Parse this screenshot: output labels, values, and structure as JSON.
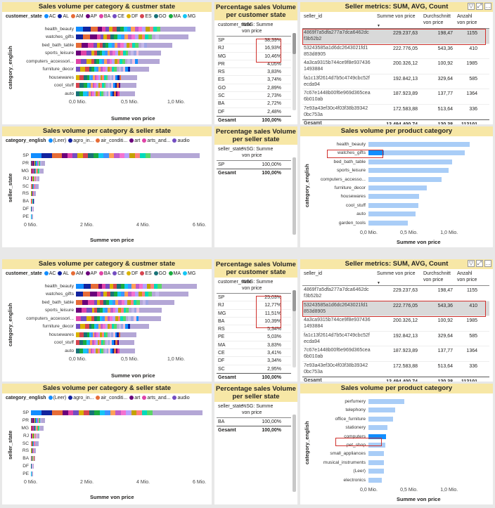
{
  "top": {
    "p1": {
      "title": "Sales volume per category & custmer state",
      "legend_title": "customer_state",
      "legend": [
        {
          "label": "AC",
          "color": "#118dff"
        },
        {
          "label": "AL",
          "color": "#12239e"
        },
        {
          "label": "AM",
          "color": "#e66c37"
        },
        {
          "label": "AP",
          "color": "#6b007b"
        },
        {
          "label": "BA",
          "color": "#e044a7"
        },
        {
          "label": "CE",
          "color": "#744ec2"
        },
        {
          "label": "DF",
          "color": "#d9b300"
        },
        {
          "label": "ES",
          "color": "#d64550"
        },
        {
          "label": "GO",
          "color": "#197278"
        },
        {
          "label": "MA",
          "color": "#1aab40"
        },
        {
          "label": "MG",
          "color": "#15c6f4"
        }
      ],
      "ylabel": "category_english",
      "xlabel": "Summe von price",
      "categories": [
        "health_beauty",
        "watches_gifts",
        "bed_bath_table",
        "sports_leisure",
        "computers_accessori...",
        "furniture_decor",
        "housewares",
        "cool_stuff",
        "auto"
      ],
      "ticks": [
        "0,0 Mio.",
        "0,5 Mio.",
        "1,0 Mio."
      ]
    },
    "p2": {
      "title": "Percentage sales Volume per customer state",
      "h1": "customer_state",
      "h2": "%SG: Summe von price",
      "rows": [
        [
          "SP",
          "38,39%"
        ],
        [
          "RJ",
          "16,93%"
        ],
        [
          "MG",
          "10,46%"
        ],
        [
          "PR",
          "4,05%"
        ],
        [
          "RS",
          "3,83%"
        ],
        [
          "ES",
          "3,74%"
        ],
        [
          "GO",
          "2,89%"
        ],
        [
          "SC",
          "2,73%"
        ],
        [
          "BA",
          "2,72%"
        ],
        [
          "DF",
          "2,48%"
        ]
      ],
      "total_label": "Gesamt",
      "total": "100,00%"
    },
    "p3": {
      "title": "Seller metrics: SUM, AVG, Count",
      "h_id": "seller_id",
      "h_sum": "Summe von price",
      "h_avg": "Durchschnitt von price",
      "h_cnt": "Anzahl von price",
      "rows": [
        [
          "4869f7a5dfa277a7dca6462dc f3b52b2",
          "229.237,63",
          "198,47",
          "1155"
        ],
        [
          "53243585a1d6dc2643021fd1 853d8905",
          "222.776,05",
          "543,36",
          "410"
        ],
        [
          "4a3ca9315b744ce9f8e937436 1493884",
          "200.326,12",
          "100,92",
          "1985"
        ],
        [
          "fa1c13f2614d7b5c4749cbc52f ecda94",
          "192.842,13",
          "329,64",
          "585"
        ],
        [
          "7c67e1448b00f6e969d365cea 6b010ab",
          "187.923,89",
          "137,77",
          "1364"
        ],
        [
          "7e93a43ef30c4f03f38b39342 0bc753a",
          "172.583,88",
          "513,64",
          "336"
        ]
      ],
      "total_label": "Gesamt",
      "total": [
        "13.494.400,74",
        "120,38",
        "112101"
      ]
    },
    "p4": {
      "title": "Sales volume per category & seller state",
      "legend_title": "category_english",
      "legend": [
        {
          "label": "(Leer)",
          "color": "#118dff"
        },
        {
          "label": "agro_in...",
          "color": "#12239e"
        },
        {
          "label": "air_conditi...",
          "color": "#e66c37"
        },
        {
          "label": "art",
          "color": "#6b007b"
        },
        {
          "label": "arts_and...",
          "color": "#e044a7"
        },
        {
          "label": "audio",
          "color": "#744ec2"
        }
      ],
      "ylabel": "seller_state",
      "xlabel": "Summe von price",
      "categories": [
        "SP",
        "PR",
        "MG",
        "RJ",
        "SC",
        "RS",
        "BA",
        "DF",
        "PE"
      ],
      "ticks": [
        "0 Mio.",
        "2 Mio.",
        "4 Mio.",
        "6 Mio."
      ]
    },
    "p5": {
      "title": "Percentage sales Volume per seller state",
      "h1": "seller_state",
      "h2": "%SG: Summe von price",
      "rows": [
        [
          "SP",
          "100,00%"
        ]
      ],
      "total_label": "Gesamt",
      "total": "100,00%"
    },
    "p6": {
      "title": "Sales volume per product category",
      "ylabel": "category_english",
      "xlabel": "Summe von price",
      "categories": [
        "health_beauty",
        "watches_gifts",
        "bed_bath_table",
        "sports_leisure",
        "computers_accesso...",
        "furniture_decor",
        "housewares",
        "cool_stuff",
        "auto",
        "garden_tools"
      ],
      "values": [
        1.26,
        1.2,
        1.04,
        1.0,
        0.91,
        0.73,
        0.63,
        0.62,
        0.59,
        0.49
      ],
      "highlight": [
        0,
        0.19,
        0,
        0,
        0,
        0,
        0,
        0,
        0,
        0
      ],
      "ticks": [
        "0,0 Mio.",
        "0,5 Mio.",
        "1,0 Mio."
      ]
    }
  },
  "bottom": {
    "p1": {
      "title": "Sales volume per category & custmer state",
      "legend_title": "customer_state",
      "ylabel": "category_english",
      "xlabel": "Summe von price",
      "categories": [
        "health_beauty",
        "watches_gifts",
        "bed_bath_table",
        "sports_leisure",
        "computers_accessori...",
        "furniture_decor",
        "housewares",
        "cool_stuff",
        "auto"
      ],
      "ticks": [
        "0,0 Mio.",
        "0,5 Mio.",
        "1,0 Mio."
      ]
    },
    "p2": {
      "title": "Percentage sales Volume per customer state",
      "h1": "customer_state",
      "h2": "%SG: Summe von price",
      "rows": [
        [
          "SP",
          "25,03%"
        ],
        [
          "RJ",
          "12,77%"
        ],
        [
          "MG",
          "11,51%"
        ],
        [
          "BA",
          "10,39%"
        ],
        [
          "RS",
          "5,34%"
        ],
        [
          "PE",
          "5,03%"
        ],
        [
          "MA",
          "3,83%"
        ],
        [
          "CE",
          "3,41%"
        ],
        [
          "DF",
          "3,34%"
        ],
        [
          "SC",
          "2,95%"
        ]
      ],
      "total_label": "Gesamt",
      "total": "100,00%"
    },
    "p3": {
      "title": "Seller metrics: SUM, AVG, Count",
      "h_id": "seller_id",
      "h_sum": "Summe von price",
      "h_avg": "Durchschnitt von price",
      "h_cnt": "Anzahl von price",
      "rows": [
        [
          "4869f7a5dfa277a7dca6462dc f3b52b2",
          "229.237,63",
          "198,47",
          "1155"
        ],
        [
          "53243585a1d6dc2643021fd1 853d8905",
          "222.776,05",
          "543,36",
          "410"
        ],
        [
          "4a3ca9315b744ce9f8e937436 1493884",
          "200.326,12",
          "100,92",
          "1985"
        ],
        [
          "fa1c13f2614d7b5c4749cbc52f ecda94",
          "192.842,13",
          "329,64",
          "585"
        ],
        [
          "7c67e1448b00f6e969d365cea 6b010ab",
          "187.923,89",
          "137,77",
          "1364"
        ],
        [
          "7e93a43ef30c4f03f38b39342 0bc753a",
          "172.583,88",
          "513,64",
          "336"
        ]
      ],
      "total_label": "Gesamt",
      "total": [
        "13.494.400,74",
        "120,38",
        "112101"
      ]
    },
    "p4": {
      "title": "Sales volume per category & seller state",
      "legend_title": "category_english",
      "ylabel": "seller_state",
      "xlabel": "Summe von price",
      "categories": [
        "SP",
        "PR",
        "MG",
        "RJ",
        "SC",
        "RS",
        "BA",
        "DF",
        "PE"
      ],
      "ticks": [
        "0 Mio.",
        "2 Mio.",
        "4 Mio.",
        "6 Mio."
      ]
    },
    "p5": {
      "title": "Percentage sales Volume per seller state",
      "h1": "seller_state",
      "h2": "%SG: Summe von price",
      "rows": [
        [
          "BA",
          "100,00%"
        ]
      ],
      "total_label": "Gesamt",
      "total": "100,00%"
    },
    "p6": {
      "title": "Sales volume per product category",
      "ylabel": "category_english",
      "xlabel": "Summe von price",
      "categories": [
        "perfumery",
        "telephony",
        "office_furniture",
        "stationery",
        "computers",
        "pet_shop",
        "small_appliances",
        "musical_instruments",
        "(Leer)",
        "electronics"
      ],
      "values": [
        0.45,
        0.33,
        0.31,
        0.24,
        0.22,
        0.21,
        0.19,
        0.19,
        0.19,
        0.17
      ],
      "highlight": [
        0,
        0,
        0,
        0,
        0.22,
        0,
        0,
        0,
        0,
        0
      ],
      "ticks": [
        "0,0 Mio.",
        "0,5 Mio.",
        "1,0 Mio."
      ]
    }
  },
  "chart_data": [
    {
      "type": "bar",
      "title": "Sales volume per product category",
      "categories": [
        "health_beauty",
        "watches_gifts",
        "bed_bath_table",
        "sports_leisure",
        "computers_accesso...",
        "furniture_decor",
        "housewares",
        "cool_stuff",
        "auto",
        "garden_tools"
      ],
      "values": [
        1.26,
        1.2,
        1.04,
        1.0,
        0.91,
        0.73,
        0.63,
        0.62,
        0.59,
        0.49
      ],
      "xlabel": "Summe von price",
      "ylabel": "category_english",
      "xlim": [
        0,
        1.4
      ]
    },
    {
      "type": "bar",
      "title": "Sales volume per product category",
      "categories": [
        "perfumery",
        "telephony",
        "office_furniture",
        "stationery",
        "computers",
        "pet_shop",
        "small_appliances",
        "musical_instruments",
        "(Leer)",
        "electronics"
      ],
      "values": [
        0.45,
        0.33,
        0.31,
        0.24,
        0.22,
        0.21,
        0.19,
        0.19,
        0.19,
        0.17
      ],
      "xlabel": "Summe von price",
      "ylabel": "category_english",
      "xlim": [
        0,
        1.4
      ]
    }
  ]
}
